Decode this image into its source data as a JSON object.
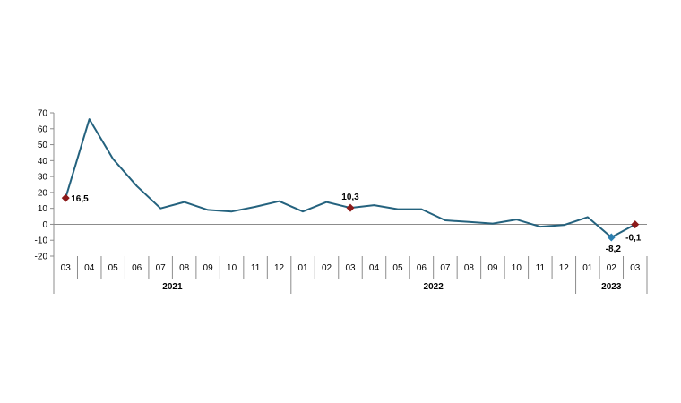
{
  "chart_data": {
    "type": "line",
    "title": "",
    "xlabel": "",
    "ylabel": "",
    "ylim": [
      -20,
      70
    ],
    "yticks": [
      -20,
      -10,
      0,
      10,
      20,
      30,
      40,
      50,
      60,
      70
    ],
    "grid": false,
    "legend": "none",
    "categories": [
      "03",
      "04",
      "05",
      "06",
      "07",
      "08",
      "09",
      "10",
      "11",
      "12",
      "01",
      "02",
      "03",
      "04",
      "05",
      "06",
      "07",
      "08",
      "09",
      "10",
      "11",
      "12",
      "01",
      "02",
      "03"
    ],
    "years": [
      {
        "label": "2021",
        "start": 0,
        "end": 9
      },
      {
        "label": "2022",
        "start": 10,
        "end": 21
      },
      {
        "label": "2023",
        "start": 22,
        "end": 24
      }
    ],
    "series": [
      {
        "values": [
          16.5,
          66,
          41,
          24,
          10,
          14,
          9,
          8,
          11,
          14.5,
          8,
          14,
          10.3,
          12,
          9.5,
          9.5,
          2.5,
          1.5,
          0.5,
          3,
          -1.5,
          -0.5,
          4.5,
          -8.2,
          -0.1
        ]
      }
    ],
    "annotations": [
      {
        "index": 0,
        "text": "16,5",
        "marker_color": "#8b1a1a"
      },
      {
        "index": 12,
        "text": "10,3",
        "marker_color": "#8b1a1a"
      },
      {
        "index": 23,
        "text": "-8,2",
        "marker_color": "#2b7fb0"
      },
      {
        "index": 24,
        "text": "-0,1",
        "marker_color": "#8b1a1a"
      }
    ],
    "colors": {
      "line": "#24627e",
      "axis": "#8c8c8c"
    }
  }
}
